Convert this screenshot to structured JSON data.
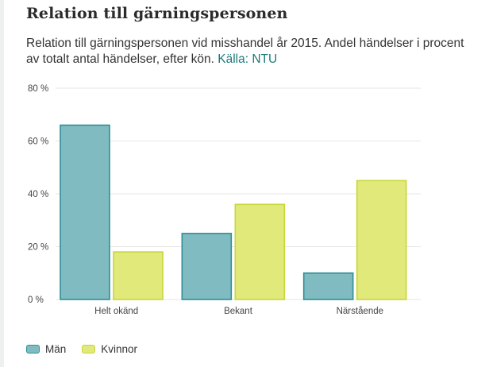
{
  "page": {
    "title": "Relation till gärningspersonen",
    "subtitle": "Relation till gärningspersonen vid misshandel år 2015. Andel händelser i procent av totalt antal händelser, efter kön.",
    "source_label": "Källa: NTU"
  },
  "colors": {
    "man_fill": "#80bbc2",
    "man_stroke": "#2f8e96",
    "kvinnor_fill": "#e1e97a",
    "kvinnor_stroke": "#c7d63a",
    "grid": "#e6e6e6",
    "source": "#1b7a7a"
  },
  "chart_data": {
    "type": "bar",
    "categories": [
      "Helt okänd",
      "Bekant",
      "Närstående"
    ],
    "series": [
      {
        "name": "Män",
        "values": [
          66,
          25,
          10
        ]
      },
      {
        "name": "Kvinnor",
        "values": [
          18,
          36,
          45
        ]
      }
    ],
    "ylim": [
      0,
      80
    ],
    "yticks": [
      0,
      20,
      40,
      60,
      80
    ],
    "ytick_labels": [
      "0 %",
      "20 %",
      "40 %",
      "60 %",
      "80 %"
    ],
    "grid": true,
    "legend_position": "bottom-left"
  }
}
